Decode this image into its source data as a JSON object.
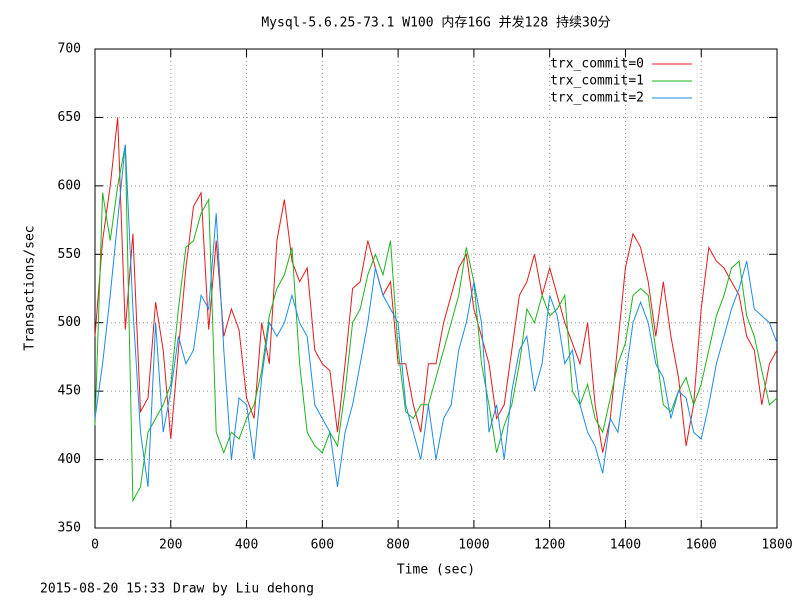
{
  "chart_data": {
    "type": "line",
    "title": "Mysql-5.6.25-73.1 W100 内存16G 并发128 持续30分",
    "x_label": "Time (sec)",
    "y_label": "Transactions/sec",
    "footer": "2015-08-20 15:33 Draw by Liu dehong",
    "xlim": [
      0,
      1800
    ],
    "xticks": [
      0,
      200,
      400,
      600,
      800,
      1000,
      1200,
      1400,
      1600,
      1800
    ],
    "ylim": [
      350,
      700
    ],
    "yticks": [
      350,
      400,
      450,
      500,
      550,
      600,
      650,
      700
    ],
    "grid": true,
    "legend": "top-right",
    "x": [
      0,
      20,
      40,
      60,
      80,
      100,
      120,
      140,
      160,
      180,
      200,
      220,
      240,
      260,
      280,
      300,
      320,
      340,
      360,
      380,
      400,
      420,
      440,
      460,
      480,
      500,
      520,
      540,
      560,
      580,
      600,
      620,
      640,
      660,
      680,
      700,
      720,
      740,
      760,
      780,
      800,
      820,
      840,
      860,
      880,
      900,
      920,
      940,
      960,
      980,
      1000,
      1020,
      1040,
      1060,
      1080,
      1100,
      1120,
      1140,
      1160,
      1180,
      1200,
      1220,
      1240,
      1260,
      1280,
      1300,
      1320,
      1340,
      1360,
      1380,
      1400,
      1420,
      1440,
      1460,
      1480,
      1500,
      1520,
      1540,
      1560,
      1580,
      1600,
      1620,
      1640,
      1660,
      1680,
      1700,
      1720,
      1740,
      1760,
      1780,
      1800
    ],
    "series": [
      {
        "name": "trx_commit=0",
        "color": "#e41a1c",
        "values": [
          490,
          560,
          600,
          650,
          495,
          565,
          435,
          445,
          515,
          480,
          415,
          480,
          540,
          585,
          595,
          495,
          560,
          490,
          510,
          495,
          445,
          430,
          500,
          470,
          560,
          590,
          545,
          530,
          540,
          480,
          470,
          465,
          420,
          470,
          525,
          530,
          560,
          540,
          520,
          530,
          470,
          470,
          440,
          420,
          470,
          470,
          500,
          520,
          540,
          550,
          510,
          490,
          470,
          430,
          440,
          480,
          520,
          530,
          550,
          520,
          540,
          520,
          500,
          485,
          470,
          500,
          440,
          405,
          430,
          485,
          540,
          565,
          555,
          530,
          490,
          530,
          490,
          460,
          410,
          440,
          510,
          555,
          545,
          540,
          530,
          520,
          490,
          480,
          440,
          470,
          480
        ]
      },
      {
        "name": "trx_commit=1",
        "color": "#1eb41e",
        "values": [
          425,
          595,
          560,
          600,
          630,
          370,
          380,
          420,
          430,
          440,
          455,
          510,
          555,
          560,
          580,
          590,
          420,
          405,
          420,
          415,
          430,
          440,
          465,
          505,
          525,
          535,
          555,
          470,
          420,
          410,
          405,
          420,
          410,
          450,
          500,
          510,
          535,
          550,
          535,
          560,
          480,
          435,
          430,
          440,
          440,
          460,
          480,
          500,
          520,
          555,
          530,
          470,
          440,
          405,
          425,
          440,
          470,
          510,
          500,
          520,
          505,
          510,
          520,
          450,
          440,
          455,
          430,
          420,
          445,
          470,
          485,
          520,
          525,
          520,
          480,
          440,
          435,
          450,
          460,
          440,
          455,
          480,
          505,
          520,
          540,
          545,
          505,
          490,
          465,
          440,
          445
        ]
      },
      {
        "name": "trx_commit=2",
        "color": "#1e8ce6",
        "values": [
          430,
          470,
          520,
          575,
          630,
          510,
          420,
          380,
          500,
          420,
          450,
          490,
          470,
          480,
          520,
          510,
          580,
          480,
          400,
          445,
          440,
          400,
          460,
          500,
          490,
          500,
          520,
          500,
          490,
          440,
          430,
          420,
          380,
          420,
          440,
          470,
          500,
          540,
          520,
          510,
          500,
          440,
          420,
          400,
          440,
          400,
          430,
          440,
          480,
          500,
          530,
          500,
          420,
          440,
          400,
          450,
          480,
          490,
          450,
          470,
          520,
          505,
          470,
          480,
          440,
          420,
          410,
          390,
          430,
          420,
          460,
          500,
          515,
          500,
          470,
          460,
          430,
          450,
          445,
          420,
          415,
          440,
          470,
          490,
          510,
          525,
          545,
          510,
          505,
          500,
          485
        ]
      }
    ]
  }
}
